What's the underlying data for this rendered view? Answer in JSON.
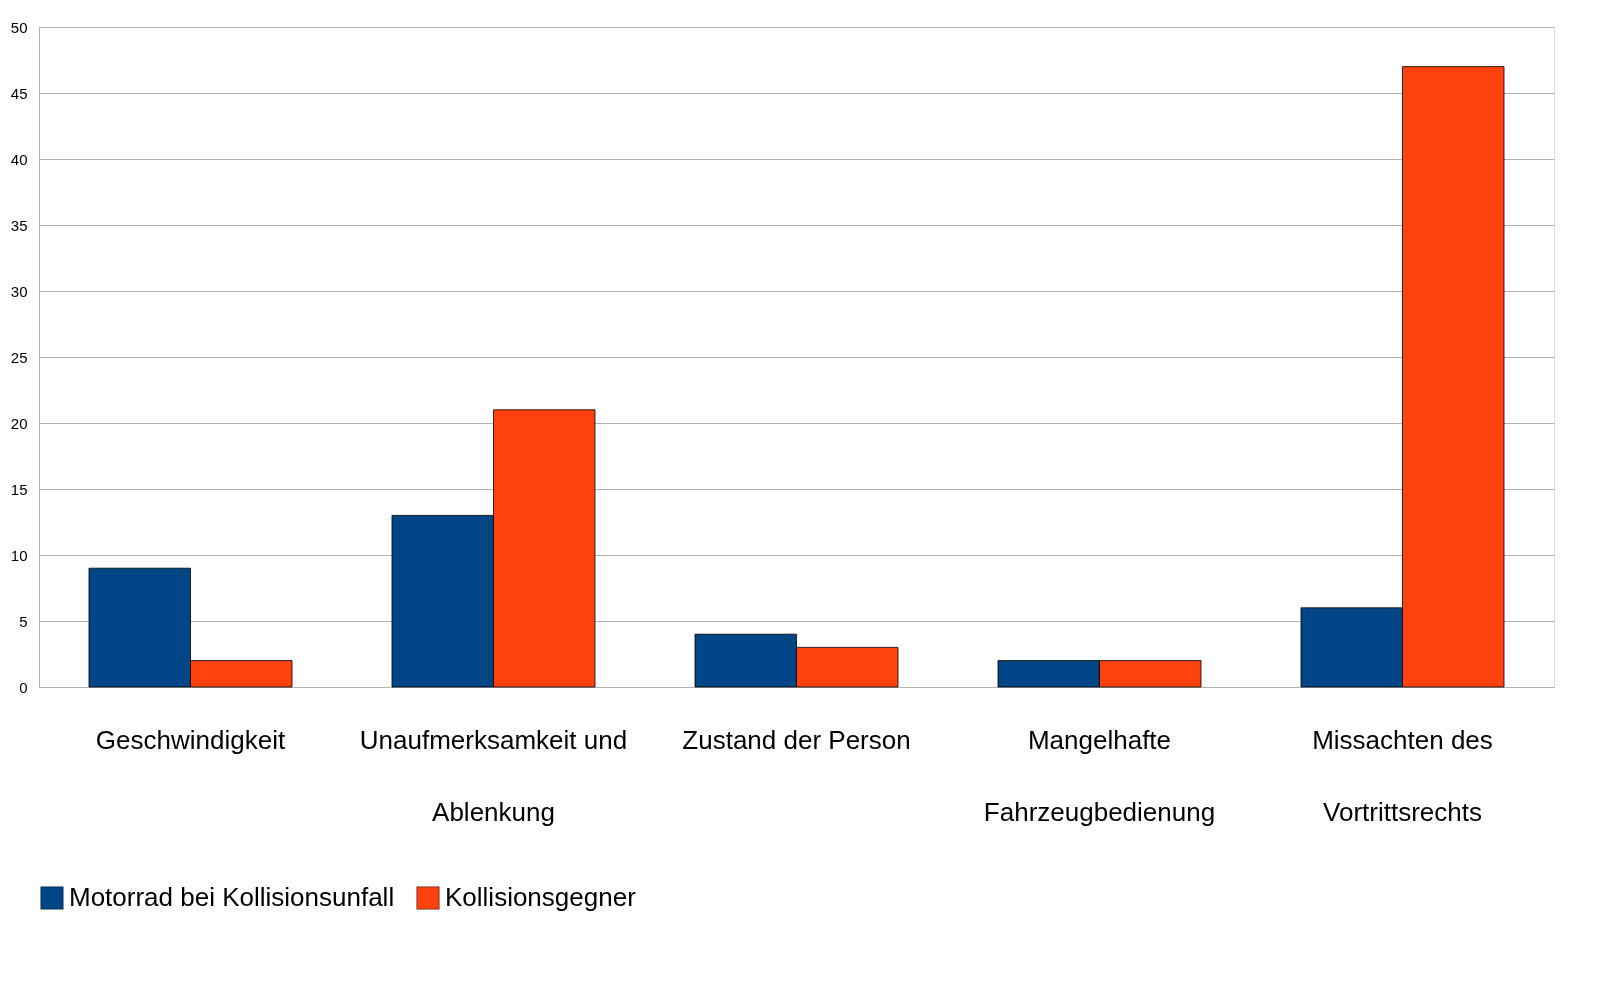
{
  "chart_data": {
    "type": "bar",
    "categories": [
      "Geschwindigkeit",
      "Unaufmerksamkeit und Ablenkung",
      "Zustand der Person",
      "Mangelhafte Fahrzeugbedienung",
      "Missachten des Vortrittsrechts"
    ],
    "series": [
      {
        "name": "Motorrad bei Kollisionsunfall",
        "color": "#004586",
        "values": [
          9,
          13,
          4,
          2,
          6
        ]
      },
      {
        "name": "Kollisionsgegner",
        "color": "#ff420e",
        "values": [
          2,
          21,
          3,
          2,
          47
        ]
      }
    ],
    "ylim": [
      0,
      50
    ],
    "yticks": [
      0,
      5,
      10,
      15,
      20,
      25,
      30,
      35,
      40,
      45,
      50
    ],
    "grid": "y",
    "legend": "bottom"
  }
}
